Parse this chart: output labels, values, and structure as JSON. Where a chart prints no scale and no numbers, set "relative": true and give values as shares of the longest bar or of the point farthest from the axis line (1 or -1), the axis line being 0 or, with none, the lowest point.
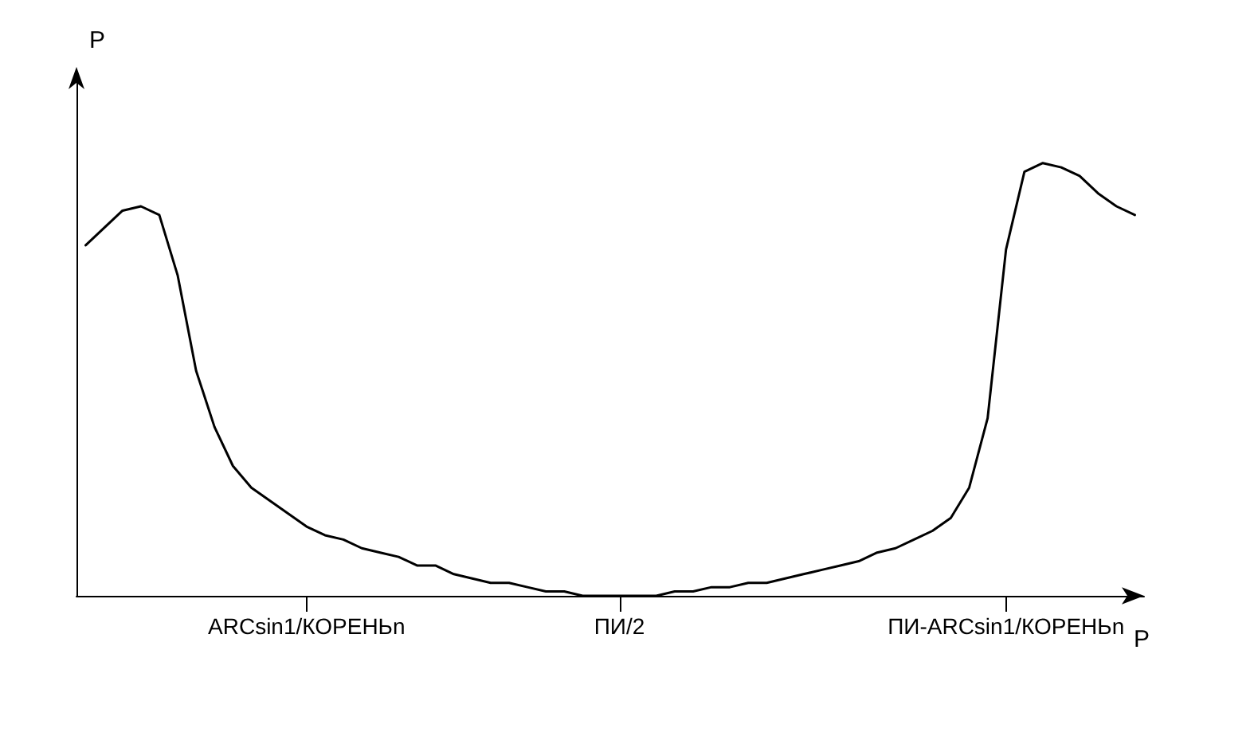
{
  "chart_data": {
    "type": "line",
    "relative": true,
    "xlabel": "P",
    "ylabel": "P",
    "marker": "none",
    "line_style": "solid",
    "categories": [
      null,
      null,
      null,
      null,
      null,
      null,
      null,
      null,
      null,
      null,
      null,
      null,
      "ARCsin1/КОРЕНЬn",
      null,
      null,
      null,
      null,
      null,
      null,
      null,
      null,
      null,
      null,
      null,
      null,
      null,
      null,
      null,
      null,
      "ПИ/2",
      null,
      null,
      null,
      null,
      null,
      null,
      null,
      null,
      null,
      null,
      null,
      null,
      null,
      null,
      null,
      null,
      null,
      null,
      null,
      null,
      "ПИ-ARCsin1/КОРЕНЬn",
      null,
      null,
      null,
      null,
      null,
      null,
      null
    ],
    "series": [
      {
        "color": "#000000",
        "values": [
          0.81,
          0.85,
          0.89,
          0.9,
          0.88,
          0.74,
          0.52,
          0.39,
          0.3,
          0.25,
          0.22,
          0.19,
          0.16,
          0.14,
          0.13,
          0.11,
          0.1,
          0.09,
          0.07,
          0.07,
          0.05,
          0.04,
          0.03,
          0.03,
          0.02,
          0.01,
          0.01,
          0,
          0,
          0,
          0,
          0,
          0.01,
          0.01,
          0.02,
          0.02,
          0.03,
          0.03,
          0.04,
          0.05,
          0.06,
          0.07,
          0.08,
          0.1,
          0.11,
          0.13,
          0.15,
          0.18,
          0.25,
          0.41,
          0.8,
          0.98,
          1,
          0.99,
          0.97,
          0.93,
          0.9,
          0.88
        ]
      }
    ]
  }
}
